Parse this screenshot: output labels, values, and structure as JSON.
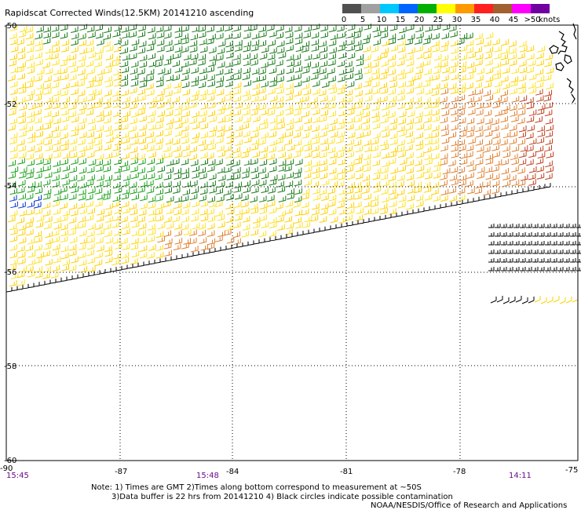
{
  "title": "Rapidscat Corrected Winds(12.5KM) 20141210 ascending",
  "legend": {
    "labels": [
      "0",
      "5",
      "10",
      "15",
      "20",
      "25",
      "30",
      "35",
      "40",
      "45",
      ">50"
    ],
    "unit": "knots",
    "colors": [
      "#505050",
      "#a0a0a0",
      "#00c8ff",
      "#0064ff",
      "#00b000",
      "#ffff00",
      "#ff9900",
      "#ff2020",
      "#a06030",
      "#ff00ff",
      "#7000a0"
    ]
  },
  "axes": {
    "lon_labels": [
      "-90",
      "-87",
      "-84",
      "-81",
      "-78",
      "-75"
    ],
    "lat_labels": [
      "-50",
      "-52",
      "-54",
      "-56",
      "-58",
      "-60"
    ]
  },
  "times": [
    "15:45",
    "15:48",
    "14:11"
  ],
  "notes": {
    "line1": "Note: 1) Times are GMT 2)Times along bottom correspond to measurement at ~50S",
    "line2": "3)Data buffer is 22 hrs from 20141210 4) Black circles indicate possible contamination",
    "line3": "NOAA/NESDIS/Office of Research and Applications"
  }
}
